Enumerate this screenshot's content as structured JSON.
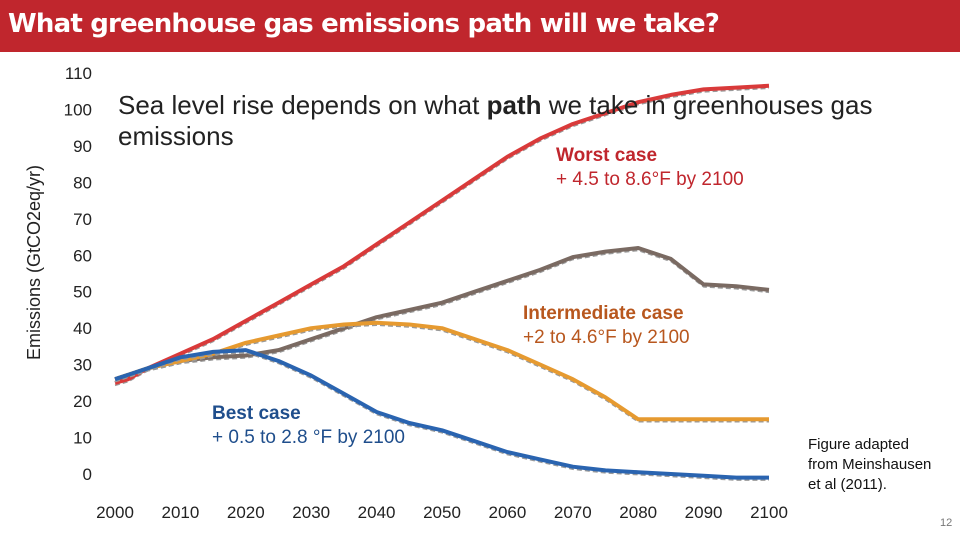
{
  "slide": {
    "title": "What greenhouse gas emissions path will we take?",
    "page_number": "12",
    "credit": "Figure adapted from Meinshausen et al (2011).",
    "main_note": {
      "part1": "Sea level rise depends on what ",
      "emphasis": "path",
      "part2": " we take in greenhouses gas emissions"
    },
    "annotations": {
      "worst": {
        "title": "Worst case",
        "detail": "+ 4.5 to 8.6°F by 2100"
      },
      "intermediate": {
        "title": "Intermediate case",
        "detail": "+2 to 4.6°F by 2100"
      },
      "best": {
        "title": "Best case",
        "detail": "+ 0.5 to 2.8 °F by 2100"
      }
    }
  },
  "colors": {
    "title_bar": "#c0262d",
    "worst": "#d93a3a",
    "intermediate": "#7a6a62",
    "orange": "#e69a30",
    "best": "#2a64b0"
  },
  "chart_data": {
    "type": "line",
    "title": "",
    "xlabel": "",
    "ylabel": "Emissions (GtCO2eq/yr)",
    "xlim": [
      2000,
      2100
    ],
    "ylim": [
      0,
      110
    ],
    "x_ticks": [
      "2000",
      "2010",
      "2020",
      "2030",
      "2040",
      "2050",
      "2060",
      "2070",
      "2080",
      "2090",
      "2100"
    ],
    "y_ticks": [
      "0",
      "10",
      "20",
      "30",
      "40",
      "50",
      "60",
      "70",
      "80",
      "90",
      "100",
      "110"
    ],
    "series": [
      {
        "name": "Worst case",
        "color": "#d93a3a",
        "x": [
          2000,
          2002,
          2005,
          2010,
          2015,
          2020,
          2025,
          2030,
          2035,
          2040,
          2045,
          2050,
          2055,
          2060,
          2065,
          2070,
          2075,
          2080,
          2085,
          2090,
          2095,
          2100
        ],
        "y": [
          25,
          26,
          29,
          33,
          37,
          42,
          47,
          52,
          57,
          63,
          69,
          75,
          81,
          87,
          92,
          96,
          99,
          102,
          104,
          105.5,
          106,
          106.5
        ]
      },
      {
        "name": "Intermediate case",
        "color": "#7a6a62",
        "x": [
          2000,
          2005,
          2010,
          2015,
          2020,
          2025,
          2030,
          2035,
          2040,
          2045,
          2050,
          2055,
          2060,
          2065,
          2070,
          2075,
          2080,
          2085,
          2090,
          2095,
          2100
        ],
        "y": [
          26,
          29,
          31,
          32,
          32.5,
          34,
          37,
          40,
          43,
          45,
          47,
          50,
          53,
          56,
          59.5,
          61,
          62,
          59,
          52,
          51.5,
          50.5
        ]
      },
      {
        "name": "Orange pathway",
        "color": "#e69a30",
        "x": [
          2000,
          2005,
          2010,
          2015,
          2020,
          2025,
          2030,
          2035,
          2040,
          2045,
          2050,
          2055,
          2060,
          2065,
          2070,
          2075,
          2080,
          2085,
          2090,
          2095,
          2100
        ],
        "y": [
          26,
          29,
          31,
          33,
          36,
          38,
          40,
          41,
          41.5,
          41,
          40,
          37,
          34,
          30,
          26,
          21,
          15,
          15,
          15,
          15,
          15
        ],
        "note": "orange line between intermediate and best cases"
      },
      {
        "name": "Best case",
        "color": "#2a64b0",
        "x": [
          2000,
          2005,
          2010,
          2015,
          2020,
          2025,
          2030,
          2035,
          2040,
          2045,
          2050,
          2055,
          2060,
          2065,
          2070,
          2075,
          2080,
          2085,
          2090,
          2095,
          2100
        ],
        "y": [
          26,
          29,
          32,
          33.5,
          34,
          31,
          27,
          22,
          17,
          14,
          12,
          9,
          6,
          4,
          2,
          1,
          0.5,
          0,
          -0.5,
          -1,
          -1
        ]
      }
    ]
  }
}
